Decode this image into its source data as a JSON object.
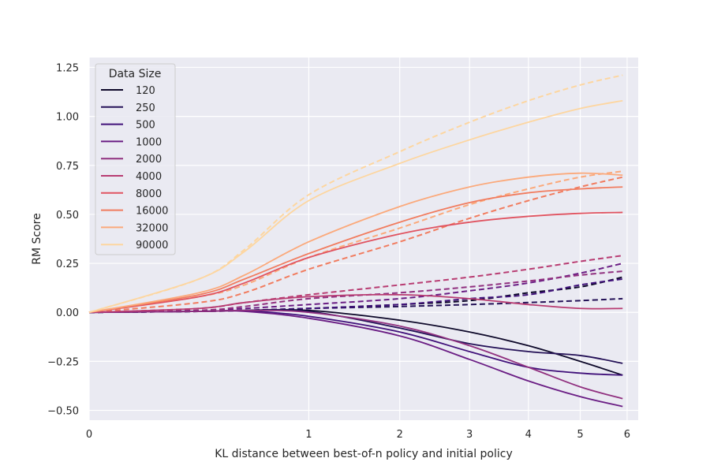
{
  "chart_data": {
    "type": "line",
    "title": "",
    "xlabel": "KL distance between best-of-n policy and initial policy",
    "ylabel": "RM Score",
    "x_scale": "sqrt",
    "xlim": [
      0,
      6.25
    ],
    "ylim": [
      -0.55,
      1.3
    ],
    "x_ticks": [
      0,
      1,
      2,
      3,
      4,
      5,
      6
    ],
    "y_ticks": [
      -0.5,
      -0.25,
      0.0,
      0.25,
      0.5,
      0.75,
      1.0,
      1.25
    ],
    "y_tick_labels": [
      "−0.50",
      "−0.25",
      "0.00",
      "0.25",
      "0.50",
      "0.75",
      "1.00",
      "1.25"
    ],
    "grid": true,
    "legend": {
      "title": "Data Size",
      "placement": "top-left"
    },
    "x": [
      0,
      0.25,
      0.5,
      1,
      2,
      3,
      4,
      5,
      5.9
    ],
    "series": [
      {
        "name": "120",
        "color": "#0d0829",
        "solid": [
          0,
          0.005,
          0.01,
          0.01,
          -0.04,
          -0.1,
          -0.17,
          -0.25,
          -0.32
        ],
        "dashed": [
          0,
          0.005,
          0.01,
          0.02,
          0.04,
          0.06,
          0.1,
          0.13,
          0.18
        ]
      },
      {
        "name": "250",
        "color": "#241157",
        "solid": [
          0,
          0.005,
          0.01,
          0.005,
          -0.08,
          -0.16,
          -0.2,
          -0.22,
          -0.26
        ],
        "dashed": [
          0,
          0.005,
          0.01,
          0.02,
          0.03,
          0.04,
          0.05,
          0.06,
          0.07
        ]
      },
      {
        "name": "500",
        "color": "#40117a",
        "solid": [
          0,
          0.005,
          0.008,
          -0.02,
          -0.1,
          -0.2,
          -0.28,
          -0.31,
          -0.32
        ],
        "dashed": [
          0,
          0.005,
          0.01,
          0.02,
          0.04,
          0.07,
          0.09,
          0.14,
          0.17
        ]
      },
      {
        "name": "1000",
        "color": "#6a1d84",
        "solid": [
          0,
          0.005,
          0.005,
          -0.03,
          -0.12,
          -0.24,
          -0.35,
          -0.43,
          -0.48
        ],
        "dashed": [
          0,
          0.01,
          0.02,
          0.04,
          0.07,
          0.11,
          0.15,
          0.2,
          0.25
        ]
      },
      {
        "name": "2000",
        "color": "#90307f",
        "solid": [
          0,
          0.005,
          0.01,
          0.0,
          -0.07,
          -0.17,
          -0.28,
          -0.38,
          -0.44
        ],
        "dashed": [
          0,
          0.01,
          0.03,
          0.07,
          0.1,
          0.13,
          0.16,
          0.19,
          0.21
        ]
      },
      {
        "name": "4000",
        "color": "#b83c72",
        "solid": [
          0,
          0.02,
          0.05,
          0.08,
          0.09,
          0.07,
          0.04,
          0.02,
          0.02
        ],
        "dashed": [
          0,
          0.02,
          0.05,
          0.09,
          0.14,
          0.18,
          0.22,
          0.26,
          0.29
        ]
      },
      {
        "name": "8000",
        "color": "#e05360",
        "solid": [
          0,
          0.08,
          0.15,
          0.28,
          0.4,
          0.46,
          0.49,
          0.505,
          0.51
        ]
      },
      {
        "name": "16000",
        "color": "#f17c5f",
        "solid": [
          0,
          0.09,
          0.17,
          0.3,
          0.46,
          0.56,
          0.61,
          0.63,
          0.64
        ],
        "dashed": [
          0,
          0.05,
          0.1,
          0.22,
          0.36,
          0.48,
          0.57,
          0.64,
          0.69
        ]
      },
      {
        "name": "32000",
        "color": "#fba97b",
        "solid": [
          0,
          0.1,
          0.19,
          0.36,
          0.54,
          0.64,
          0.69,
          0.71,
          0.7
        ],
        "dashed": [
          0,
          0.08,
          0.14,
          0.28,
          0.43,
          0.55,
          0.63,
          0.69,
          0.72
        ]
      },
      {
        "name": "90000",
        "color": "#fdd6a0",
        "solid": [
          0,
          0.17,
          0.31,
          0.57,
          0.76,
          0.88,
          0.97,
          1.04,
          1.08
        ],
        "dashed": [
          0,
          0.17,
          0.32,
          0.6,
          0.82,
          0.97,
          1.08,
          1.16,
          1.21
        ]
      }
    ]
  }
}
